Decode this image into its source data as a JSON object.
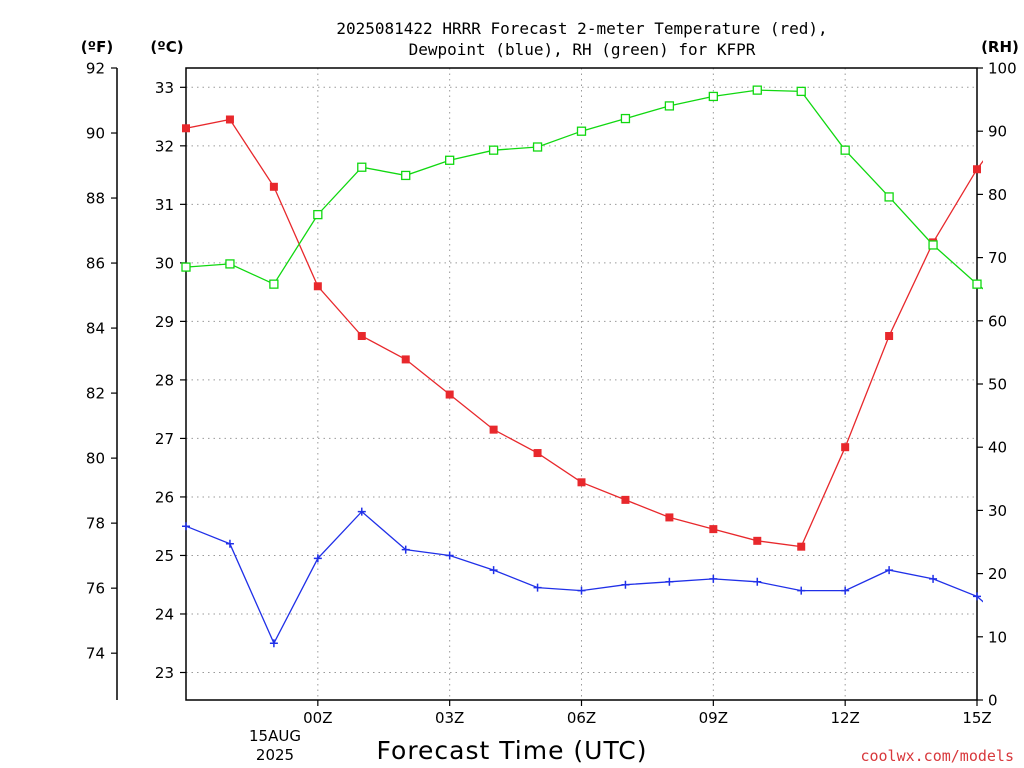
{
  "title_line1": "2025081422 HRRR Forecast 2-meter Temperature (red),",
  "title_line2": "Dewpoint (blue), RH (green) for KFPR",
  "credit": "coolwx.com/models",
  "colors": {
    "temperature": "#e8282c",
    "dewpoint": "#2030e8",
    "rh": "#10d810"
  },
  "chart_data": {
    "type": "line",
    "xlabel": "Forecast Time (UTC)",
    "x_hours": [
      -3,
      -2,
      -1,
      0,
      1,
      2,
      3,
      4,
      5,
      6,
      7,
      8,
      9,
      10,
      11,
      12,
      13,
      14,
      15,
      16
    ],
    "xlim": [
      -3,
      15
    ],
    "x_tick_hours": [
      0,
      3,
      6,
      9,
      12,
      15
    ],
    "x_tick_labels": [
      "00Z",
      "03Z",
      "06Z",
      "09Z",
      "12Z",
      "15Z"
    ],
    "x_date_label": [
      "15AUG",
      "2025"
    ],
    "axes": {
      "left_f": {
        "label": "(ºF)",
        "ticks": [
          74,
          76,
          78,
          80,
          82,
          84,
          86,
          88,
          90,
          92
        ],
        "range": [
          72.56,
          92.0
        ]
      },
      "left_c": {
        "label": "(ºC)",
        "ticks": [
          23,
          24,
          25,
          26,
          27,
          28,
          29,
          30,
          31,
          32,
          33
        ],
        "range": [
          22.53,
          33.33
        ]
      },
      "right_rh": {
        "label": "(RH)",
        "ticks": [
          0,
          10,
          20,
          30,
          40,
          50,
          60,
          70,
          80,
          90,
          100
        ],
        "range": [
          0,
          100
        ]
      }
    },
    "grid": true,
    "series": [
      {
        "key": "temperature",
        "axis": "left_c",
        "marker": "filled-square",
        "values": [
          32.3,
          32.45,
          31.3,
          29.6,
          28.75,
          28.35,
          27.75,
          27.15,
          26.75,
          26.25,
          25.95,
          25.65,
          25.45,
          25.25,
          25.15,
          26.85,
          28.75,
          30.35,
          31.6,
          32.6
        ]
      },
      {
        "key": "dewpoint",
        "axis": "left_c",
        "marker": "plus",
        "values": [
          25.5,
          25.2,
          23.5,
          24.95,
          25.75,
          25.1,
          25.0,
          24.75,
          24.45,
          24.4,
          24.5,
          24.55,
          24.6,
          24.55,
          24.4,
          24.4,
          24.75,
          24.6,
          24.3,
          23.65
        ]
      },
      {
        "key": "rh",
        "axis": "left_rh",
        "marker": "open-square",
        "values": [
          68.5,
          69.0,
          65.8,
          76.8,
          84.3,
          83.0,
          85.4,
          87.0,
          87.5,
          90.0,
          92.0,
          94.0,
          95.5,
          96.5,
          96.3,
          87.0,
          79.6,
          72.0,
          65.8,
          60.5
        ]
      }
    ]
  }
}
